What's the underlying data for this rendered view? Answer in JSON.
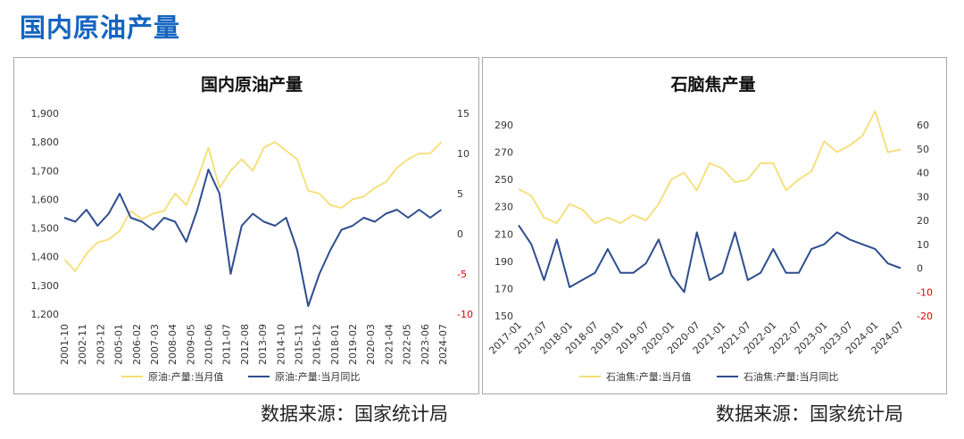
{
  "page_title": "国内原油产量",
  "source_left": "数据来源：国家统计局",
  "source_right": "数据来源：国家统计局",
  "colors": {
    "title": "#1565c0",
    "yellow": "#f7dd72",
    "blue": "#2e4d8f",
    "red_axis": "#e00000"
  },
  "chart_data": [
    {
      "type": "line",
      "title": "国内原油产量",
      "y_left": {
        "min": 1200,
        "max": 1900,
        "ticks": [
          "1,200",
          "1,300",
          "1,400",
          "1,500",
          "1,600",
          "1,700",
          "1,800",
          "1,900"
        ]
      },
      "y_right": {
        "min": -10,
        "max": 15,
        "ticks": [
          "-10",
          "-5",
          "0",
          "5",
          "10",
          "15"
        ]
      },
      "x_ticks": [
        "2001-10",
        "2002-11",
        "2003-12",
        "2005-01",
        "2006-02",
        "2007-03",
        "2008-04",
        "2009-05",
        "2010-06",
        "2011-07",
        "2012-08",
        "2013-09",
        "2014-10",
        "2015-11",
        "2016-12",
        "2018-01",
        "2019-02",
        "2020-03",
        "2021-04",
        "2022-05",
        "2023-06",
        "2024-07"
      ],
      "series": [
        {
          "name": "原油:产量:当月值",
          "axis": "left",
          "color": "#f7dd72",
          "x": [
            "2001-10",
            "2002-06",
            "2003-02",
            "2003-10",
            "2004-06",
            "2005-02",
            "2005-10",
            "2006-06",
            "2007-02",
            "2007-10",
            "2008-06",
            "2009-02",
            "2009-10",
            "2010-06",
            "2011-02",
            "2011-10",
            "2012-06",
            "2013-02",
            "2013-10",
            "2014-06",
            "2015-02",
            "2015-10",
            "2016-06",
            "2017-02",
            "2017-10",
            "2018-06",
            "2019-02",
            "2019-10",
            "2020-06",
            "2021-02",
            "2021-10",
            "2022-06",
            "2023-02",
            "2023-10",
            "2024-06"
          ],
          "values": [
            1390,
            1350,
            1410,
            1450,
            1460,
            1490,
            1560,
            1530,
            1550,
            1560,
            1620,
            1580,
            1670,
            1780,
            1640,
            1700,
            1740,
            1700,
            1780,
            1800,
            1770,
            1740,
            1630,
            1620,
            1580,
            1570,
            1600,
            1610,
            1640,
            1660,
            1710,
            1740,
            1760,
            1760,
            1800
          ]
        },
        {
          "name": "原油:产量:当月同比",
          "axis": "right",
          "color": "#2e4d8f",
          "x": [
            "2001-10",
            "2002-06",
            "2003-02",
            "2003-10",
            "2004-06",
            "2005-02",
            "2005-10",
            "2006-06",
            "2007-02",
            "2007-10",
            "2008-06",
            "2009-02",
            "2009-10",
            "2010-06",
            "2011-02",
            "2011-10",
            "2012-06",
            "2013-02",
            "2013-10",
            "2014-06",
            "2015-02",
            "2015-10",
            "2016-06",
            "2017-02",
            "2017-10",
            "2018-06",
            "2019-02",
            "2019-10",
            "2020-06",
            "2021-02",
            "2021-10",
            "2022-06",
            "2023-02",
            "2023-10",
            "2024-06"
          ],
          "values": [
            2.0,
            1.5,
            3.0,
            1.0,
            2.5,
            5.0,
            2.0,
            1.5,
            0.5,
            2.0,
            1.5,
            -1.0,
            3.0,
            8.0,
            5.0,
            -5.0,
            1.0,
            2.5,
            1.5,
            1.0,
            2.0,
            -2.0,
            -9.0,
            -5.0,
            -2.0,
            0.5,
            1.0,
            2.0,
            1.5,
            2.5,
            3.0,
            2.0,
            3.0,
            2.0,
            3.0
          ]
        }
      ]
    },
    {
      "type": "line",
      "title": "石脑焦产量",
      "y_left": {
        "min": 150,
        "max": 290,
        "ticks": [
          "150",
          "170",
          "190",
          "210",
          "230",
          "250",
          "270",
          "290"
        ]
      },
      "y_right": {
        "min": -20,
        "max": 60,
        "ticks": [
          "-20",
          "-10",
          "0",
          "10",
          "20",
          "30",
          "40",
          "50",
          "60"
        ]
      },
      "x_ticks": [
        "2017-01",
        "2017-07",
        "2018-01",
        "2018-07",
        "2019-01",
        "2019-07",
        "2020-01",
        "2020-07",
        "2021-01",
        "2021-07",
        "2022-01",
        "2022-07",
        "2023-01",
        "2023-07",
        "2024-01",
        "2024-07"
      ],
      "series": [
        {
          "name": "石油焦:产量:当月值",
          "axis": "left",
          "color": "#f7dd72",
          "x": [
            "2017-01",
            "2017-04",
            "2017-07",
            "2017-10",
            "2018-01",
            "2018-04",
            "2018-07",
            "2018-10",
            "2019-01",
            "2019-04",
            "2019-07",
            "2019-10",
            "2020-01",
            "2020-04",
            "2020-07",
            "2020-10",
            "2021-01",
            "2021-04",
            "2021-07",
            "2021-10",
            "2022-01",
            "2022-04",
            "2022-07",
            "2022-10",
            "2023-01",
            "2023-04",
            "2023-07",
            "2023-10",
            "2024-01",
            "2024-04",
            "2024-07"
          ],
          "values": [
            243,
            238,
            222,
            218,
            232,
            228,
            218,
            222,
            218,
            224,
            220,
            232,
            250,
            255,
            242,
            262,
            258,
            248,
            250,
            262,
            262,
            242,
            250,
            256,
            278,
            270,
            275,
            282,
            300,
            270,
            272
          ]
        },
        {
          "name": "石油焦:产量:当月同比",
          "axis": "right",
          "color": "#2e4d8f",
          "x": [
            "2017-01",
            "2017-04",
            "2017-07",
            "2017-10",
            "2018-01",
            "2018-04",
            "2018-07",
            "2018-10",
            "2019-01",
            "2019-04",
            "2019-07",
            "2019-10",
            "2020-01",
            "2020-04",
            "2020-07",
            "2020-10",
            "2021-01",
            "2021-04",
            "2021-07",
            "2021-10",
            "2022-01",
            "2022-04",
            "2022-07",
            "2022-10",
            "2023-01",
            "2023-04",
            "2023-07",
            "2023-10",
            "2024-01",
            "2024-04",
            "2024-07"
          ],
          "values": [
            18,
            10,
            -5,
            12,
            -8,
            -5,
            -2,
            8,
            -2,
            -2,
            2,
            12,
            -3,
            -10,
            15,
            -5,
            -2,
            15,
            -5,
            -2,
            8,
            -2,
            -2,
            8,
            10,
            15,
            12,
            10,
            8,
            2,
            0
          ]
        }
      ]
    }
  ]
}
